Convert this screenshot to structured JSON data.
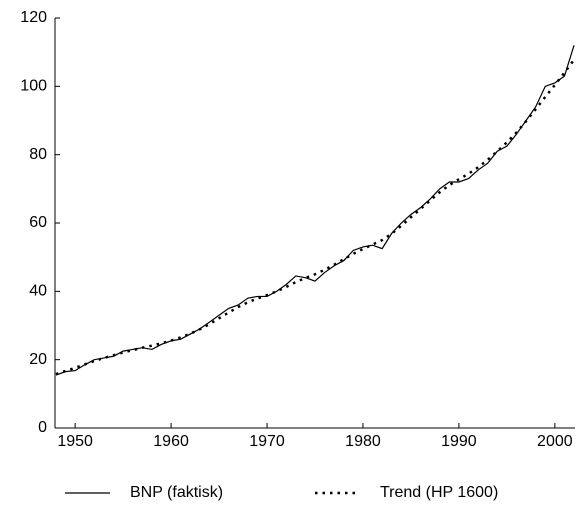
{
  "chart_data": {
    "type": "line",
    "x": [
      1948,
      1949,
      1950,
      1951,
      1952,
      1953,
      1954,
      1955,
      1956,
      1957,
      1958,
      1959,
      1960,
      1961,
      1962,
      1963,
      1964,
      1965,
      1966,
      1967,
      1968,
      1969,
      1970,
      1971,
      1972,
      1973,
      1974,
      1975,
      1976,
      1977,
      1978,
      1979,
      1980,
      1981,
      1982,
      1983,
      1984,
      1985,
      1986,
      1987,
      1988,
      1989,
      1990,
      1991,
      1992,
      1993,
      1994,
      1995,
      1996,
      1997,
      1998,
      1999,
      2000,
      2001,
      2002
    ],
    "series": [
      {
        "name": "BNP (faktisk)",
        "color": "#000000",
        "style": "solid",
        "values": [
          15.5,
          16.5,
          16.8,
          18.5,
          20,
          20.5,
          21,
          22.5,
          23,
          23.5,
          23,
          24.5,
          25.5,
          26,
          27.5,
          29,
          31,
          33,
          35,
          36,
          38,
          38.5,
          38.5,
          40,
          42,
          44.5,
          44,
          43,
          45.5,
          47.5,
          49,
          52,
          53,
          53.5,
          52.5,
          57,
          60,
          62.5,
          64.5,
          67,
          70,
          72,
          72,
          73,
          75.5,
          77.5,
          81,
          82.5,
          86,
          90,
          94,
          100,
          101,
          103,
          112
        ]
      },
      {
        "name": "Trend (HP 1600)",
        "color": "#000000",
        "style": "dotted",
        "values": [
          15.8,
          16.7,
          17.6,
          18.6,
          19.6,
          20.5,
          21.3,
          22.1,
          22.8,
          23.5,
          24.1,
          24.8,
          25.6,
          26.5,
          27.6,
          28.9,
          30.4,
          32.1,
          33.8,
          35.4,
          36.8,
          37.9,
          38.9,
          40,
          41.3,
          42.7,
          43.9,
          45,
          46.3,
          47.8,
          49.4,
          51,
          52.4,
          53.7,
          55,
          56.9,
          59.2,
          61.7,
          64.1,
          66.6,
          69,
          71.1,
          72.8,
          74.4,
          76.3,
          78.5,
          81,
          83.6,
          86.5,
          89.8,
          93.3,
          96.9,
          100.4,
          104,
          107.8
        ]
      }
    ],
    "xlim": [
      1947.9,
      2002.1
    ],
    "xticks": [
      1950,
      1960,
      1970,
      1980,
      1990,
      2000
    ],
    "ylim": [
      0,
      120
    ],
    "yticks": [
      0,
      20,
      40,
      60,
      80,
      100,
      120
    ],
    "legend": "bottom"
  }
}
